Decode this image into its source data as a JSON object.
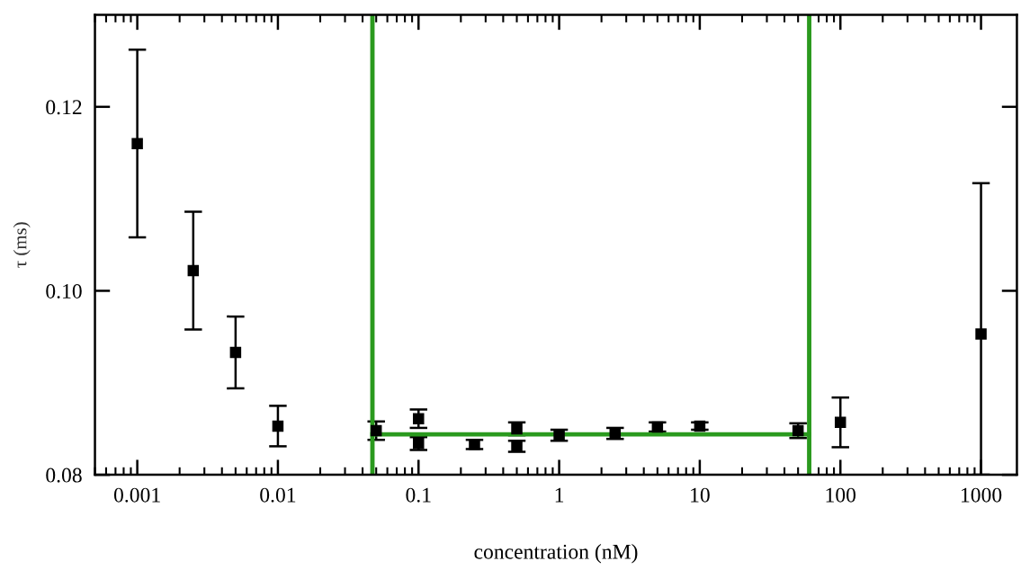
{
  "chart_data": {
    "type": "scatter",
    "xlabel": "concentration (nM)",
    "ylabel": "τ (ms)",
    "log": "x",
    "xlim": [
      0.0005,
      1800
    ],
    "ylim": [
      0.08,
      0.13
    ],
    "xticks": [
      {
        "value": 0.001,
        "label": "0.001"
      },
      {
        "value": 0.01,
        "label": "0.01"
      },
      {
        "value": 0.1,
        "label": "0.1"
      },
      1,
      10,
      100,
      1000
    ],
    "yticks": [
      {
        "value": 0.08,
        "label": "0.08"
      },
      {
        "value": 0.1,
        "label": "0.10"
      },
      {
        "value": 0.12,
        "label": "0.12"
      }
    ],
    "grid": false,
    "series": [
      {
        "marker": "square",
        "color": "#000000",
        "x": [
          0.001,
          0.0025,
          0.005,
          0.01,
          0.05,
          0.1,
          0.1,
          0.25,
          0.5,
          0.5,
          1,
          2.5,
          5,
          10,
          50,
          100,
          1000
        ],
        "values": [
          0.116,
          0.1022,
          0.0933,
          0.0853,
          0.0848,
          0.0861,
          0.0834,
          0.0833,
          0.085,
          0.0831,
          0.0843,
          0.0845,
          0.0852,
          0.0853,
          0.0848,
          0.0857,
          0.0953
        ],
        "errors": [
          0.0102,
          0.0064,
          0.0039,
          0.0022,
          0.001,
          0.001,
          0.0007,
          0.0005,
          0.0007,
          0.0006,
          0.0006,
          0.0006,
          0.0005,
          0.0004,
          0.0008,
          0.0027,
          [
            0.08,
            0.1117
          ]
        ]
      },
      {
        "type": "line",
        "color": "#2a9a1e",
        "x": [
          0.047,
          60
        ],
        "values": [
          0.0844,
          0.0844
        ]
      }
    ],
    "ref_lines": [
      {
        "axis": "x",
        "value": 0.047,
        "color": "#2a9a1e"
      },
      {
        "axis": "x",
        "value": 60,
        "color": "#2a9a1e"
      }
    ]
  }
}
